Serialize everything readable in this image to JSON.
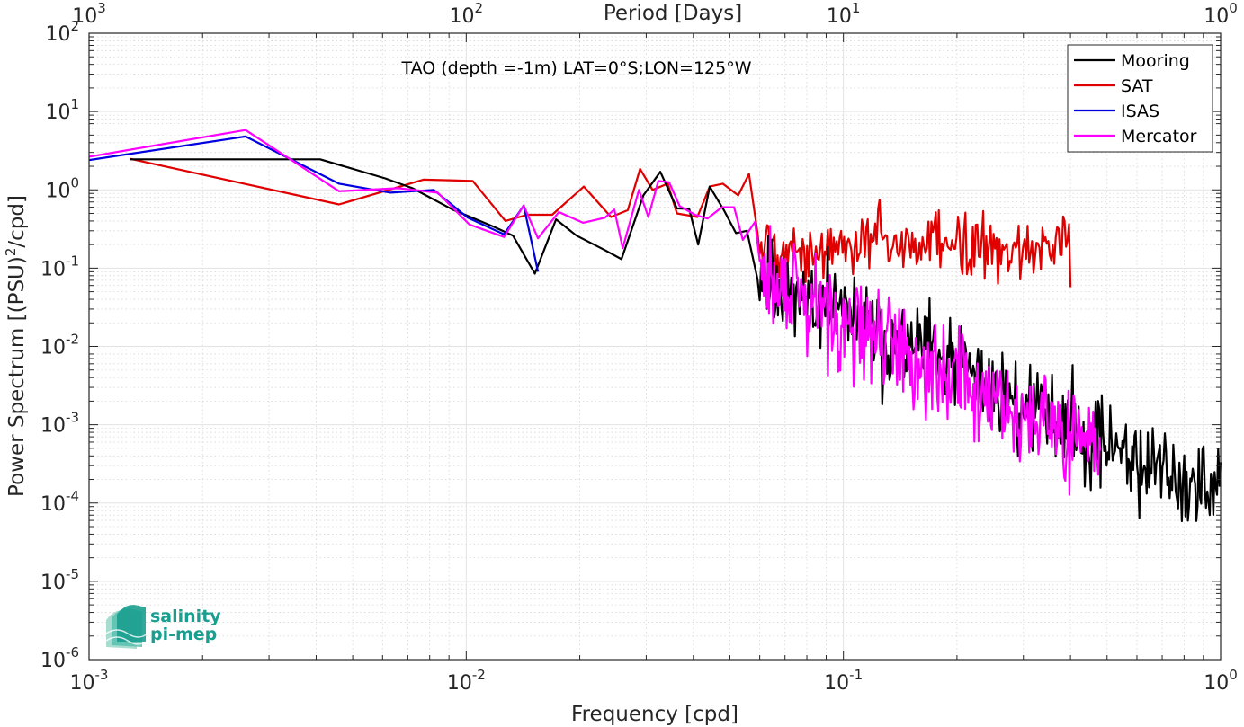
{
  "chart_data": {
    "type": "line",
    "title": "TAO (depth =-1m) LAT=0°S;LON=125°W",
    "xlabel": "Frequency [cpd]",
    "ylabel_main": "Power Spectrum [(PSU)",
    "ylabel_sup": "2",
    "ylabel_tail": "/cpd]",
    "top_xlabel": "Period [Days]",
    "x_scale": "log",
    "y_scale": "log",
    "xlim": [
      0.001,
      1
    ],
    "ylim": [
      1e-06,
      100
    ],
    "grid": true,
    "legend_position": "top-right",
    "x_ticks": [
      {
        "base": "10",
        "exp": "-3",
        "value": 0.001
      },
      {
        "base": "10",
        "exp": "-2",
        "value": 0.01
      },
      {
        "base": "10",
        "exp": "-1",
        "value": 0.1
      },
      {
        "base": "10",
        "exp": "0",
        "value": 1
      }
    ],
    "top_ticks": [
      {
        "base": "10",
        "exp": "3",
        "value": 0.001
      },
      {
        "base": "10",
        "exp": "2",
        "value": 0.01
      },
      {
        "base": "10",
        "exp": "1",
        "value": 0.1
      },
      {
        "base": "10",
        "exp": "0",
        "value": 1
      }
    ],
    "y_ticks": [
      {
        "base": "10",
        "exp": "2",
        "value": 100
      },
      {
        "base": "10",
        "exp": "1",
        "value": 10
      },
      {
        "base": "10",
        "exp": "0",
        "value": 1
      },
      {
        "base": "10",
        "exp": "-1",
        "value": 0.1
      },
      {
        "base": "10",
        "exp": "-2",
        "value": 0.01
      },
      {
        "base": "10",
        "exp": "-3",
        "value": 0.001
      },
      {
        "base": "10",
        "exp": "-4",
        "value": 0.0001
      },
      {
        "base": "10",
        "exp": "-5",
        "value": 1e-05
      },
      {
        "base": "10",
        "exp": "-6",
        "value": 1e-06
      }
    ],
    "series": [
      {
        "name": "Mooring",
        "color": "#000000",
        "points": [
          [
            0.00128,
            2.45
          ],
          [
            0.0041,
            2.45
          ],
          [
            0.0061,
            1.4
          ],
          [
            0.0072,
            1.05
          ],
          [
            0.0092,
            0.56
          ],
          [
            0.0118,
            0.34
          ],
          [
            0.0133,
            0.26
          ],
          [
            0.0152,
            0.085
          ],
          [
            0.0173,
            0.42
          ],
          [
            0.0196,
            0.26
          ],
          [
            0.0233,
            0.17
          ],
          [
            0.0258,
            0.13
          ],
          [
            0.0295,
            0.85
          ],
          [
            0.0327,
            1.7
          ],
          [
            0.0362,
            0.58
          ],
          [
            0.039,
            0.57
          ],
          [
            0.0412,
            0.2
          ],
          [
            0.0442,
            1.1
          ],
          [
            0.0482,
            0.55
          ],
          [
            0.0519,
            0.28
          ],
          [
            0.0555,
            0.3
          ],
          [
            0.0592,
            0.072
          ]
        ],
        "noisy_tail": {
          "from": 0.06,
          "to": 1.0,
          "log_slope": -2.35,
          "anchor": [
            0.1,
            0.026
          ],
          "jitter": 0.55,
          "points": 380,
          "seed": 11
        }
      },
      {
        "name": "SAT",
        "color": "#e00000",
        "points": [
          [
            0.00128,
            2.5
          ],
          [
            0.0046,
            0.65
          ],
          [
            0.0077,
            1.35
          ],
          [
            0.0104,
            1.3
          ],
          [
            0.0127,
            0.4
          ],
          [
            0.0145,
            0.48
          ],
          [
            0.0169,
            0.48
          ],
          [
            0.0205,
            1.1
          ],
          [
            0.0242,
            0.45
          ],
          [
            0.0268,
            0.55
          ],
          [
            0.0289,
            1.85
          ],
          [
            0.0312,
            1.0
          ],
          [
            0.0342,
            1.2
          ],
          [
            0.0362,
            0.5
          ],
          [
            0.041,
            0.45
          ],
          [
            0.0442,
            1.1
          ],
          [
            0.0479,
            1.2
          ],
          [
            0.0526,
            0.85
          ],
          [
            0.0562,
            1.6
          ],
          [
            0.0592,
            0.28
          ]
        ],
        "noisy_tail": {
          "from": 0.06,
          "to": 0.4,
          "log_slope": 0.0,
          "anchor": [
            0.1,
            0.2
          ],
          "jitter": 0.42,
          "points": 210,
          "seed": 5
        }
      },
      {
        "name": "ISAS",
        "color": "#0000e0",
        "points": [
          [
            0.001,
            2.4
          ],
          [
            0.0026,
            4.8
          ],
          [
            0.0046,
            1.2
          ],
          [
            0.0063,
            0.92
          ],
          [
            0.0082,
            1.0
          ],
          [
            0.0101,
            0.44
          ],
          [
            0.0126,
            0.27
          ],
          [
            0.0142,
            0.63
          ],
          [
            0.0155,
            0.09
          ]
        ]
      },
      {
        "name": "Mercator",
        "color": "#ff00ff",
        "points": [
          [
            0.001,
            2.65
          ],
          [
            0.0026,
            5.8
          ],
          [
            0.0046,
            0.96
          ],
          [
            0.0066,
            1.05
          ],
          [
            0.0084,
            0.92
          ],
          [
            0.0102,
            0.36
          ],
          [
            0.0126,
            0.25
          ],
          [
            0.0142,
            0.63
          ],
          [
            0.0155,
            0.24
          ],
          [
            0.0176,
            0.52
          ],
          [
            0.0204,
            0.38
          ],
          [
            0.0233,
            0.44
          ],
          [
            0.0247,
            0.56
          ],
          [
            0.026,
            0.18
          ],
          [
            0.0287,
            1.0
          ],
          [
            0.0304,
            0.45
          ],
          [
            0.0323,
            1.3
          ],
          [
            0.0345,
            1.25
          ],
          [
            0.0368,
            0.62
          ],
          [
            0.0404,
            0.48
          ],
          [
            0.0436,
            0.43
          ],
          [
            0.0476,
            0.6
          ],
          [
            0.0513,
            0.6
          ],
          [
            0.0541,
            0.23
          ],
          [
            0.0583,
            0.39
          ]
        ],
        "noisy_tail": {
          "from": 0.06,
          "to": 0.48,
          "log_slope": -2.45,
          "anchor": [
            0.1,
            0.022
          ],
          "jitter": 0.62,
          "points": 330,
          "seed": 29
        }
      }
    ]
  },
  "logo": {
    "line1": "salinity",
    "line2": "pi-mep"
  }
}
